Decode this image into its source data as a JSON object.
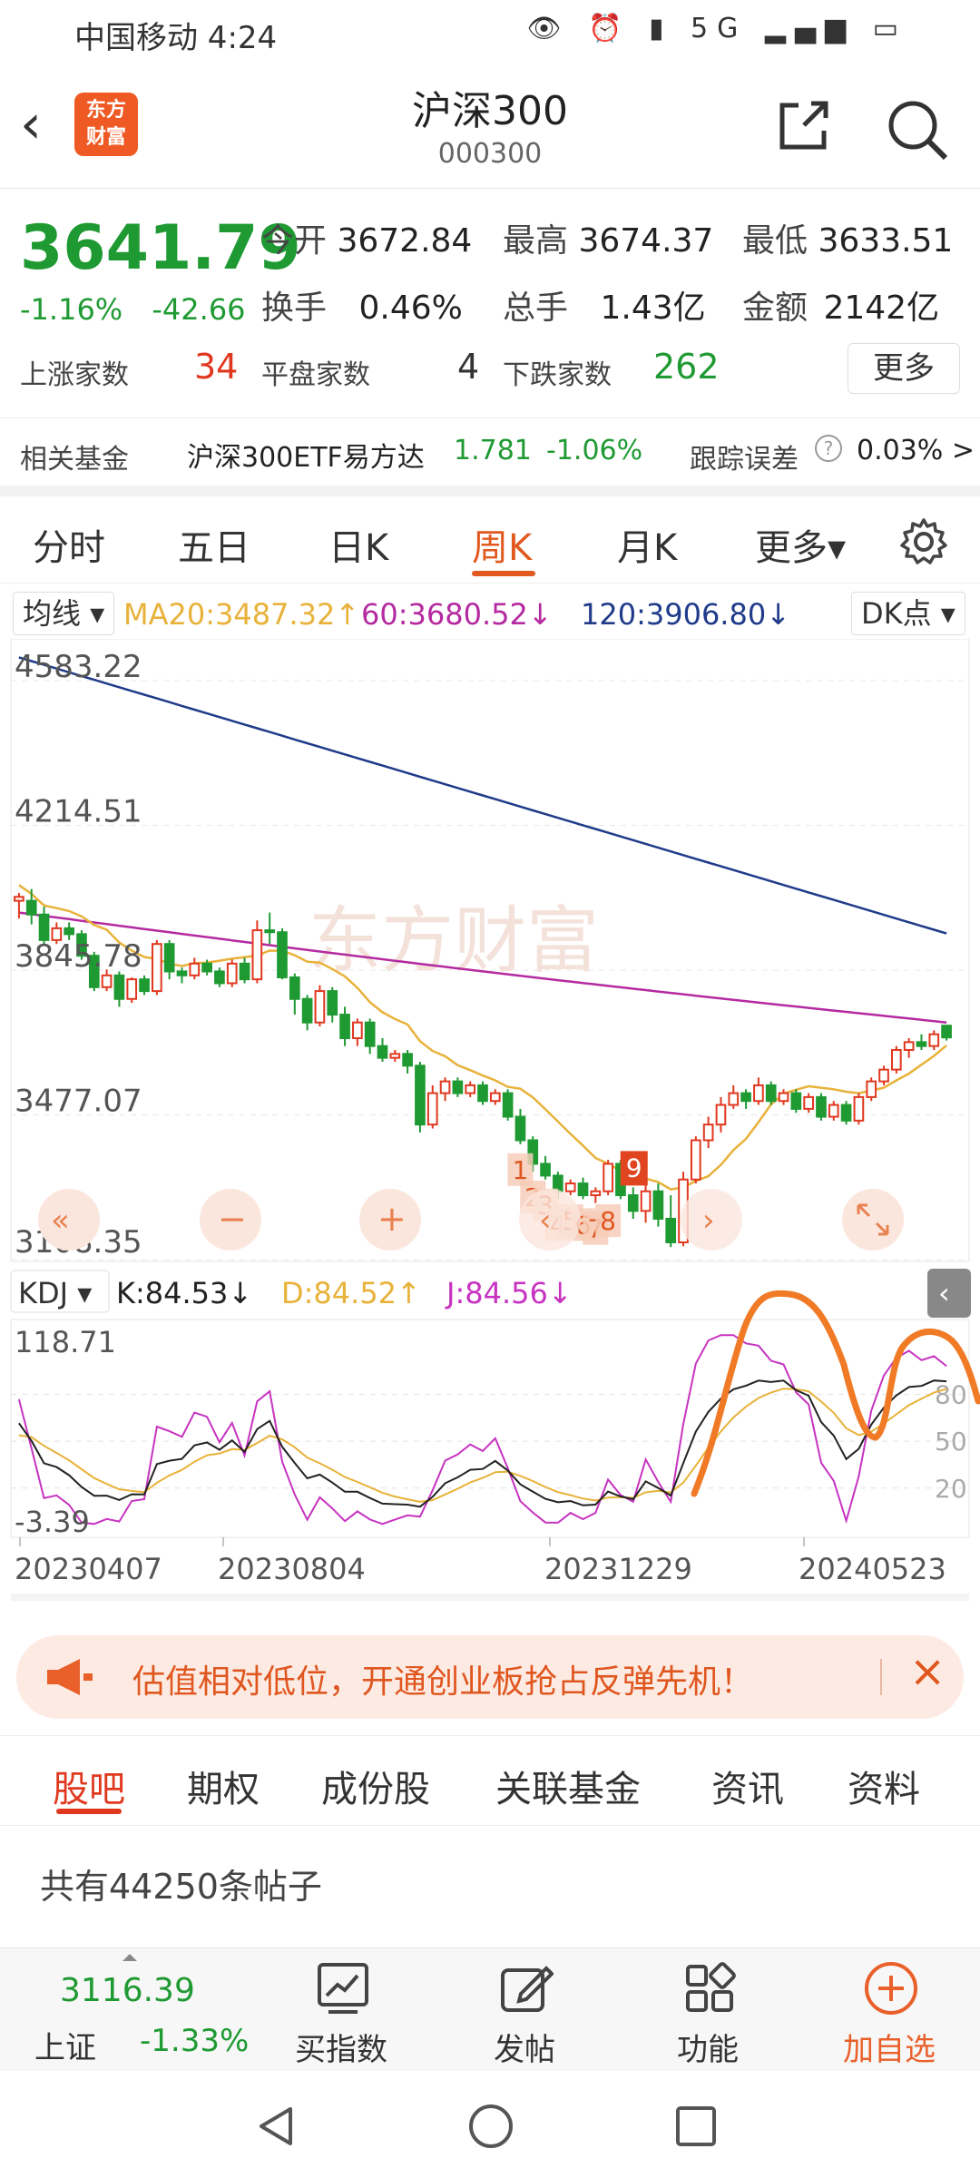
{
  "status_bar": {
    "carrier_time": "中国移动 4:24",
    "icons": "👁 ⏰ ▮ 5G ▂▄▆ ▭"
  },
  "header": {
    "logo_line1": "东方",
    "logo_line2": "财富",
    "title": "沪深300",
    "code": "000300"
  },
  "quote": {
    "price": "3641.79",
    "change_pct": "-1.16%",
    "change_abs": "-42.66",
    "open_label": "今开",
    "open_value": "3672.84",
    "high_label": "最高",
    "high_value": "3674.37",
    "low_label": "最低",
    "low_value": "3633.51",
    "turnover_label": "换手",
    "turnover_value": "0.46%",
    "volume_label": "总手",
    "volume_value": "1.43亿",
    "amount_label": "金额",
    "amount_value": "2142亿",
    "up_label": "上涨家数",
    "up_value": "34",
    "flat_label": "平盘家数",
    "flat_value": "4",
    "down_label": "下跌家数",
    "down_value": "262",
    "more_label": "更多"
  },
  "fund": {
    "label": "相关基金",
    "name": "沪深300ETF易方达",
    "price": "1.781",
    "change": "-1.06%",
    "tracking_label": "跟踪误差",
    "tracking_value": "0.03% >"
  },
  "period_tabs": {
    "items": [
      "分时",
      "五日",
      "日K",
      "周K",
      "月K"
    ],
    "active": "周K",
    "more_label": "更多▾"
  },
  "ma_bar": {
    "selector": "均线 ▾",
    "ma20": "MA20:3487.32↑",
    "ma60": "60:3680.52↓",
    "ma120": "120:3906.80↓",
    "dk": "DK点 ▾",
    "colors": {
      "ma20": "#e8b23a",
      "ma60": "#b52aa0",
      "ma120": "#1f3b8a",
      "up": "#e0381f",
      "down": "#1f9a33"
    }
  },
  "kline_axis": {
    "y_labels": [
      "4583.22",
      "4214.51",
      "3845.78",
      "3477.07",
      "3108.35"
    ]
  },
  "kline_signals": {
    "markers": [
      "1",
      "2",
      "3",
      "4",
      "5",
      "6",
      "7",
      "8"
    ],
    "nine": "9"
  },
  "kdj_bar": {
    "selector": "KDJ ▾",
    "k": "K:84.53↓",
    "d": "D:84.52↑",
    "j": "J:84.56↓"
  },
  "kdj_axis": {
    "top": "118.71",
    "bottom": "-3.39",
    "levels": [
      "80",
      "50",
      "20"
    ]
  },
  "date_axis": [
    "20230407",
    "20230804",
    "20231229",
    "20240523"
  ],
  "watermark": "东方财富",
  "banner": {
    "text": "估值相对低位，开通创业板抢占反弹先机！"
  },
  "bottom_tabs": {
    "items": [
      "股吧",
      "期权",
      "成份股",
      "关联基金",
      "资讯",
      "资料"
    ],
    "active": "股吧"
  },
  "posts_count": "共有44250条帖子",
  "toolbar": {
    "index_name": "上证",
    "index_value": "3116.39",
    "index_change": "-1.33%",
    "buy": "买指数",
    "post": "发帖",
    "func": "功能",
    "add": "加自选"
  },
  "chart_data": {
    "type": "candlestick",
    "title": "沪深300",
    "period": "周K",
    "x_ticks": [
      "20230407",
      "20230804",
      "20231229",
      "20240523"
    ],
    "ylim": [
      3108.35,
      4583.22
    ],
    "series": [
      {
        "name": "MA20",
        "last": 3487.32
      },
      {
        "name": "60",
        "last": 3680.52
      },
      {
        "name": "120",
        "last": 3906.8
      }
    ],
    "candles": [
      [
        3990,
        4000,
        3945,
        4010,
        1
      ],
      [
        3990,
        3955,
        3930,
        4020,
        0
      ],
      [
        3955,
        3890,
        3880,
        3975,
        0
      ],
      [
        3890,
        3920,
        3880,
        3935,
        1
      ],
      [
        3920,
        3905,
        3890,
        3935,
        0
      ],
      [
        3905,
        3850,
        3840,
        3915,
        0
      ],
      [
        3850,
        3770,
        3760,
        3860,
        0
      ],
      [
        3770,
        3800,
        3760,
        3815,
        1
      ],
      [
        3800,
        3740,
        3720,
        3810,
        0
      ],
      [
        3740,
        3790,
        3730,
        3795,
        1
      ],
      [
        3790,
        3760,
        3750,
        3800,
        0
      ],
      [
        3760,
        3880,
        3750,
        3890,
        1
      ],
      [
        3880,
        3810,
        3790,
        3890,
        0
      ],
      [
        3810,
        3800,
        3780,
        3820,
        0
      ],
      [
        3800,
        3830,
        3790,
        3845,
        1
      ],
      [
        3830,
        3810,
        3800,
        3840,
        0
      ],
      [
        3810,
        3780,
        3770,
        3820,
        0
      ],
      [
        3780,
        3830,
        3770,
        3840,
        1
      ],
      [
        3830,
        3790,
        3780,
        3845,
        0
      ],
      [
        3790,
        3915,
        3780,
        3940,
        1
      ],
      [
        3915,
        3910,
        3880,
        3960,
        0
      ],
      [
        3910,
        3795,
        3790,
        3920,
        0
      ],
      [
        3795,
        3740,
        3700,
        3805,
        0
      ],
      [
        3740,
        3680,
        3660,
        3750,
        0
      ],
      [
        3680,
        3760,
        3670,
        3775,
        1
      ],
      [
        3760,
        3700,
        3680,
        3770,
        0
      ],
      [
        3700,
        3640,
        3620,
        3720,
        0
      ],
      [
        3640,
        3680,
        3620,
        3690,
        1
      ],
      [
        3680,
        3620,
        3600,
        3690,
        0
      ],
      [
        3620,
        3590,
        3580,
        3640,
        0
      ],
      [
        3590,
        3600,
        3580,
        3610,
        1
      ],
      [
        3600,
        3570,
        3550,
        3610,
        0
      ],
      [
        3570,
        3420,
        3400,
        3580,
        0
      ],
      [
        3420,
        3500,
        3410,
        3520,
        1
      ],
      [
        3500,
        3530,
        3480,
        3540,
        1
      ],
      [
        3530,
        3500,
        3490,
        3540,
        0
      ],
      [
        3500,
        3520,
        3490,
        3530,
        1
      ],
      [
        3520,
        3480,
        3470,
        3530,
        0
      ],
      [
        3480,
        3500,
        3470,
        3510,
        1
      ],
      [
        3500,
        3440,
        3430,
        3510,
        0
      ],
      [
        3440,
        3380,
        3370,
        3460,
        0
      ],
      [
        3380,
        3320,
        3300,
        3390,
        0
      ],
      [
        3320,
        3290,
        3280,
        3340,
        0
      ],
      [
        3290,
        3250,
        3230,
        3300,
        0
      ],
      [
        3250,
        3270,
        3240,
        3280,
        1
      ],
      [
        3270,
        3240,
        3230,
        3285,
        0
      ],
      [
        3240,
        3250,
        3220,
        3260,
        1
      ],
      [
        3250,
        3320,
        3240,
        3330,
        1
      ],
      [
        3320,
        3240,
        3230,
        3330,
        0
      ],
      [
        3240,
        3200,
        3180,
        3260,
        0
      ],
      [
        3200,
        3250,
        3170,
        3270,
        1
      ],
      [
        3250,
        3180,
        3160,
        3270,
        0
      ],
      [
        3180,
        3120,
        3108,
        3240,
        0
      ],
      [
        3120,
        3280,
        3110,
        3300,
        1
      ],
      [
        3280,
        3380,
        3270,
        3390,
        1
      ],
      [
        3380,
        3420,
        3360,
        3440,
        1
      ],
      [
        3420,
        3470,
        3400,
        3490,
        1
      ],
      [
        3470,
        3500,
        3460,
        3520,
        1
      ],
      [
        3500,
        3480,
        3460,
        3510,
        0
      ],
      [
        3480,
        3520,
        3470,
        3540,
        1
      ],
      [
        3520,
        3480,
        3470,
        3530,
        0
      ],
      [
        3480,
        3500,
        3470,
        3510,
        1
      ],
      [
        3500,
        3460,
        3450,
        3510,
        0
      ],
      [
        3460,
        3490,
        3450,
        3500,
        1
      ],
      [
        3490,
        3440,
        3430,
        3500,
        0
      ],
      [
        3440,
        3470,
        3430,
        3480,
        1
      ],
      [
        3470,
        3430,
        3420,
        3480,
        0
      ],
      [
        3430,
        3490,
        3420,
        3500,
        1
      ],
      [
        3490,
        3530,
        3480,
        3540,
        1
      ],
      [
        3530,
        3560,
        3520,
        3570,
        1
      ],
      [
        3560,
        3610,
        3550,
        3620,
        1
      ],
      [
        3610,
        3630,
        3590,
        3640,
        1
      ],
      [
        3630,
        3620,
        3610,
        3650,
        0
      ],
      [
        3620,
        3650,
        3610,
        3660,
        1
      ],
      [
        3672,
        3642,
        3634,
        3674,
        0
      ]
    ]
  }
}
